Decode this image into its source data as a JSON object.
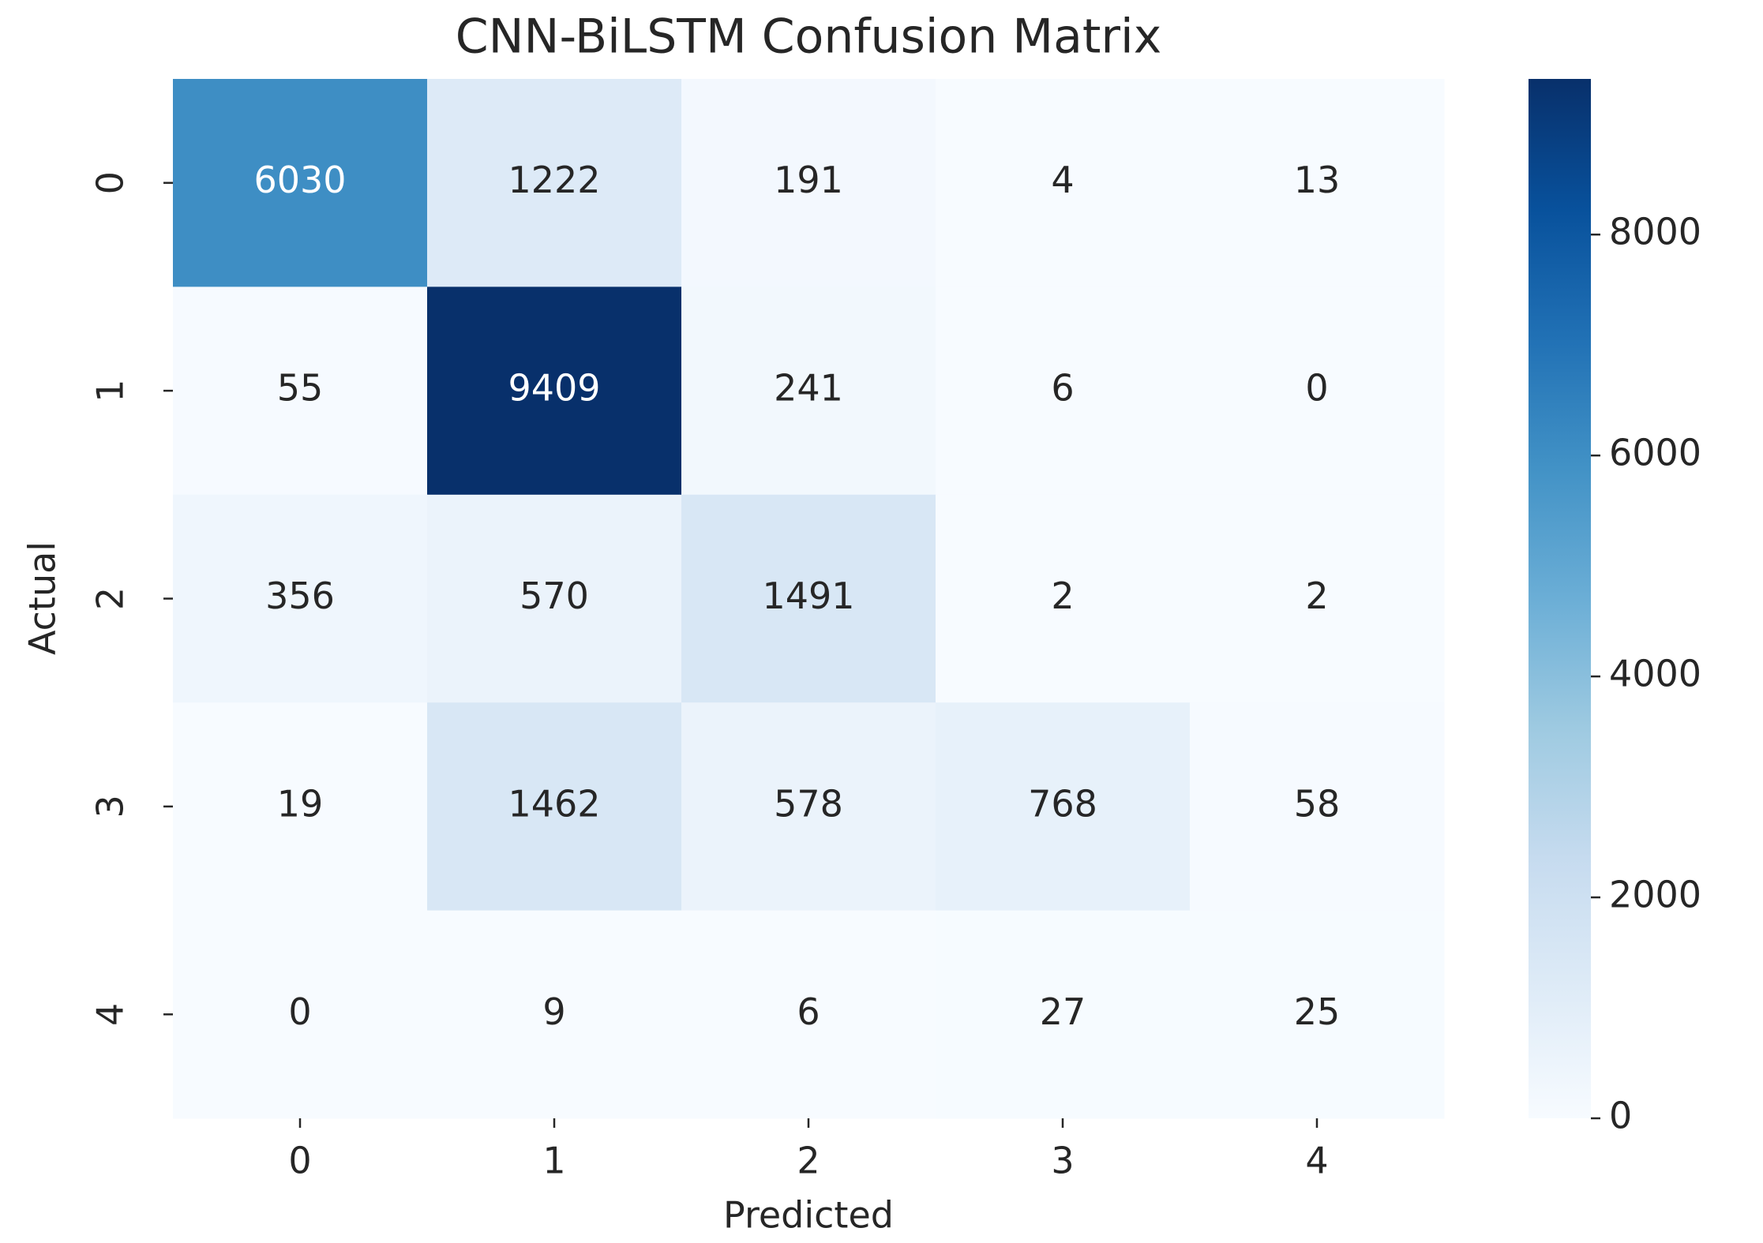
{
  "chart_data": {
    "type": "heatmap",
    "title": "CNN-BiLSTM Confusion Matrix",
    "xlabel": "Predicted",
    "ylabel": "Actual",
    "x_categories": [
      "0",
      "1",
      "2",
      "3",
      "4"
    ],
    "y_categories": [
      "0",
      "1",
      "2",
      "3",
      "4"
    ],
    "values": [
      [
        6030,
        1222,
        191,
        4,
        13
      ],
      [
        55,
        9409,
        241,
        6,
        0
      ],
      [
        356,
        570,
        1491,
        2,
        2
      ],
      [
        19,
        1462,
        578,
        768,
        58
      ],
      [
        0,
        9,
        6,
        27,
        25
      ]
    ],
    "colormap": [
      "#f7fbff",
      "#deebf7",
      "#c6dbef",
      "#9ecae1",
      "#6baed6",
      "#4292c6",
      "#2171b5",
      "#08519c",
      "#08306b"
    ],
    "clim": [
      0,
      9409
    ],
    "cticks": [
      0,
      2000,
      4000,
      6000,
      8000
    ]
  }
}
